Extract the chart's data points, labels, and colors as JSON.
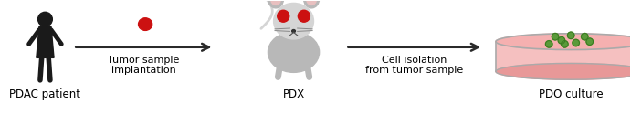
{
  "bg_color": "#ffffff",
  "label_fontsize": 8.5,
  "arrow_label_fontsize": 8,
  "arrow_color": "#2a2a2a",
  "human_color": "#1a1a1a",
  "tumor_color": "#cc1111",
  "mouse_body_color": "#b8b8b8",
  "mouse_light_color": "#d5d5d5",
  "mouse_outline_color": "#555555",
  "dish_rim_color": "#aaaaaa",
  "dish_fill_color": "#f5c0c0",
  "dish_wall_color": "#e8a0a0",
  "organoid_color": "#5a9a3a",
  "organoid_edge_color": "#3a7a20",
  "labels": [
    "PDAC patient",
    "PDX",
    "PDO culture"
  ],
  "arrow_labels": [
    "Tumor sample\nimplantation",
    "Cell isolation\nfrom tumor sample"
  ],
  "xlim": [
    0,
    10
  ],
  "ylim": [
    0,
    1.8
  ],
  "figsize": [
    6.91,
    1.24
  ],
  "dpi": 100
}
